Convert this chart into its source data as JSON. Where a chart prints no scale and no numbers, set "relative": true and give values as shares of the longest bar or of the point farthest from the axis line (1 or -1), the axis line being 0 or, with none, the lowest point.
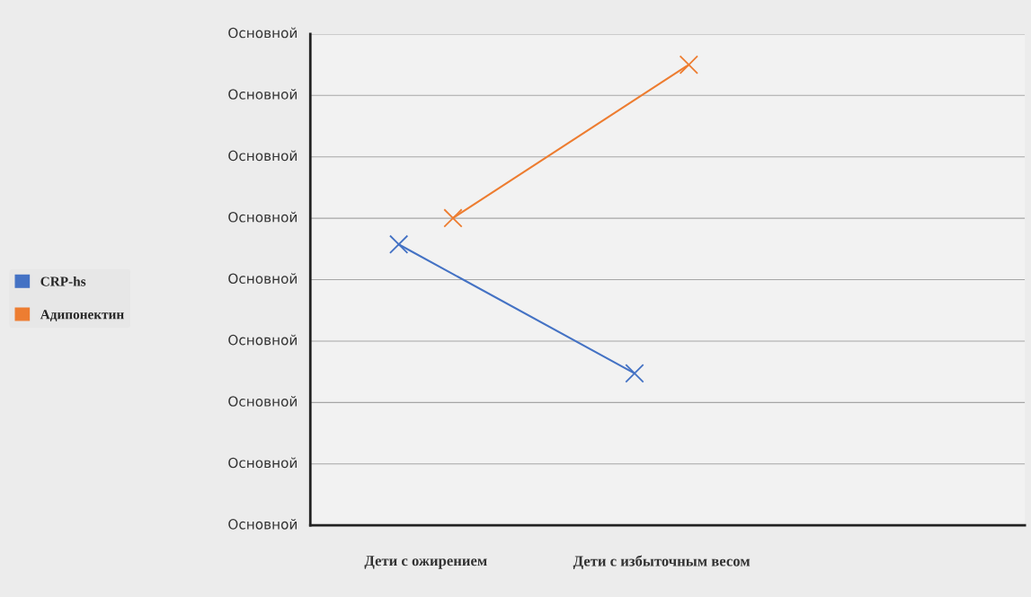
{
  "chart_data": {
    "type": "line",
    "relative": true,
    "categories": [
      "Дети с ожирением",
      "Дети с избыточным весом"
    ],
    "series": [
      {
        "name": "CRP-hs",
        "color": "#4472c4",
        "values": [
          0.61,
          0.33
        ]
      },
      {
        "name": "Адипонектин",
        "color": "#ed7d31",
        "values": [
          0.667,
          1
        ]
      }
    ],
    "annotations": [
      "Основной",
      "Основной",
      "Основной",
      "Основной",
      "Основной",
      "Основной",
      "Основной",
      "Основной",
      "Основной"
    ],
    "tick_labels": "x",
    "grid": "y",
    "legend": "left",
    "marker": "cross",
    "line_style": "solid"
  }
}
